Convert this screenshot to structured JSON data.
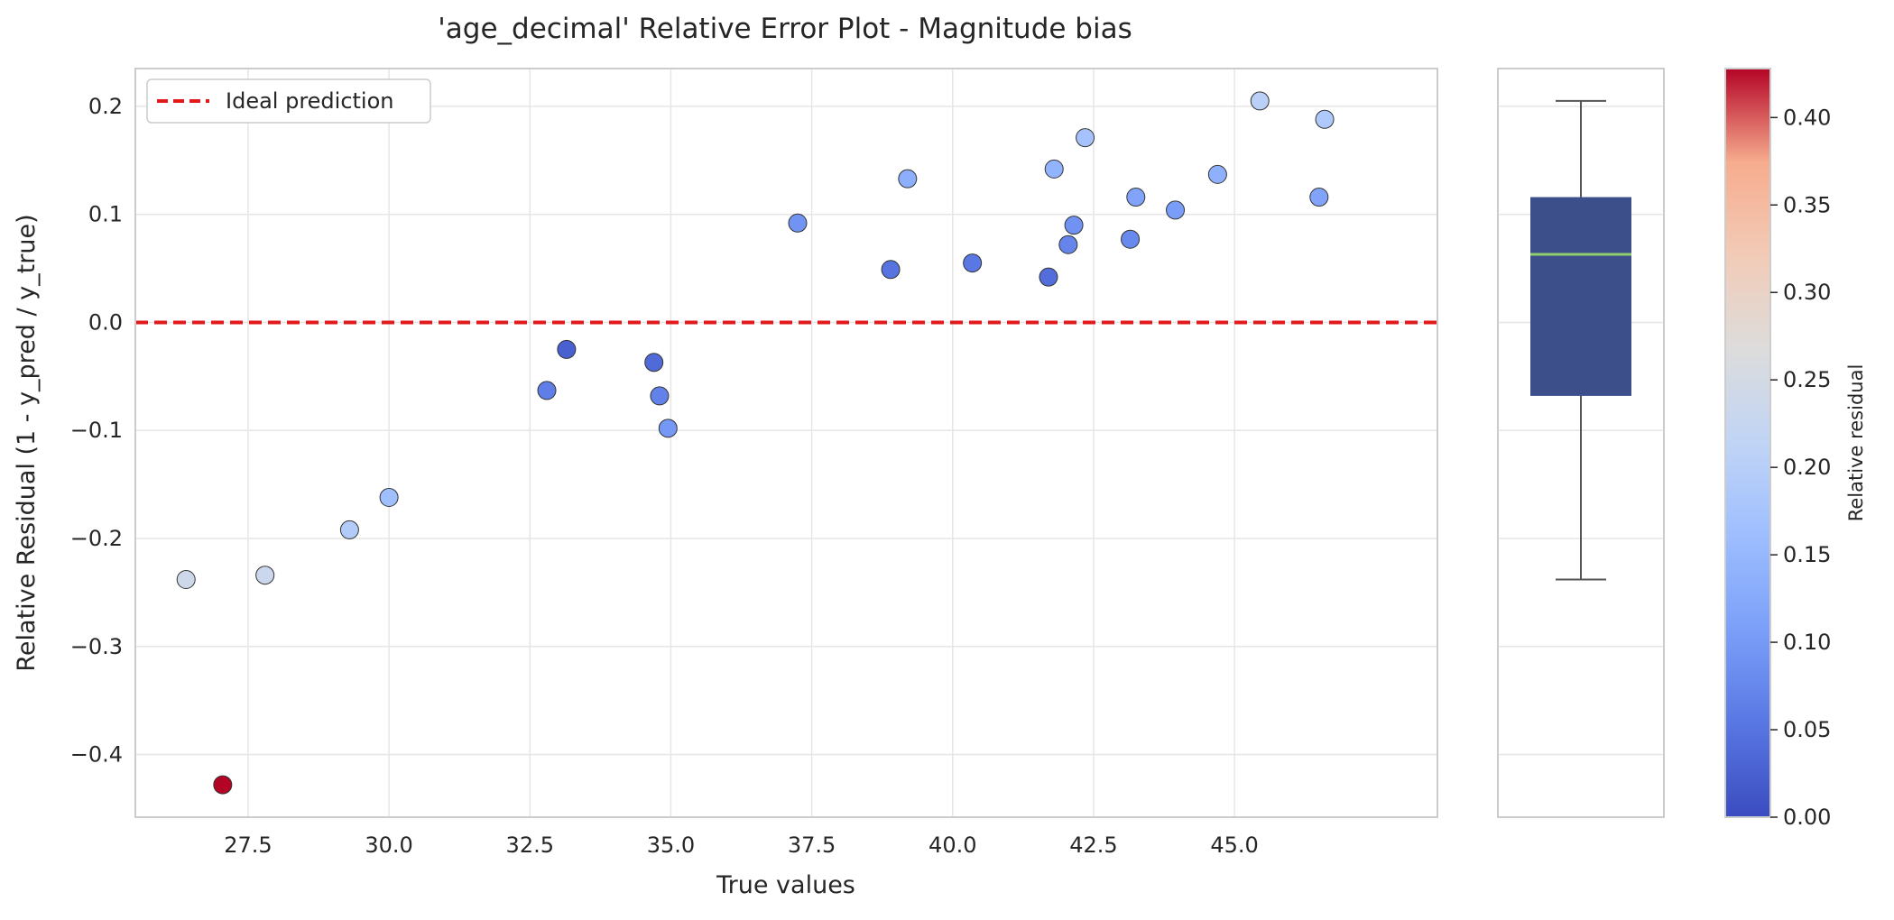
{
  "chart_data": {
    "type": "scatter",
    "title": "'age_decimal' Relative Error Plot - Magnitude bias",
    "xlabel": "True values",
    "ylabel": "Relative Residual (1 - y_pred / y_true)",
    "xlim": [
      25.5,
      48.6
    ],
    "ylim": [
      -0.458,
      0.235
    ],
    "x_ticks": [
      "27.5",
      "30.0",
      "32.5",
      "35.0",
      "37.5",
      "40.0",
      "42.5",
      "45.0"
    ],
    "x_tick_values": [
      27.5,
      30.0,
      32.5,
      35.0,
      37.5,
      40.0,
      42.5,
      45.0
    ],
    "y_ticks": [
      "−0.4",
      "−0.3",
      "−0.2",
      "−0.1",
      "0.0",
      "0.1",
      "0.2"
    ],
    "y_tick_values": [
      -0.4,
      -0.3,
      -0.2,
      -0.1,
      0.0,
      0.1,
      0.2
    ],
    "grid": true,
    "legend": {
      "position": "top-left",
      "entries": [
        "Ideal prediction"
      ]
    },
    "reference_line": {
      "y": 0.0,
      "style": "dashed",
      "color": "#e31a1c"
    },
    "points": [
      {
        "x": 26.4,
        "y": -0.238
      },
      {
        "x": 27.05,
        "y": -0.428
      },
      {
        "x": 27.8,
        "y": -0.234
      },
      {
        "x": 29.3,
        "y": -0.192
      },
      {
        "x": 30.0,
        "y": -0.162
      },
      {
        "x": 32.8,
        "y": -0.063
      },
      {
        "x": 33.15,
        "y": -0.025
      },
      {
        "x": 34.7,
        "y": -0.037
      },
      {
        "x": 34.8,
        "y": -0.068
      },
      {
        "x": 34.95,
        "y": -0.098
      },
      {
        "x": 37.25,
        "y": 0.092
      },
      {
        "x": 38.9,
        "y": 0.049
      },
      {
        "x": 39.2,
        "y": 0.133
      },
      {
        "x": 40.35,
        "y": 0.055
      },
      {
        "x": 41.7,
        "y": 0.042
      },
      {
        "x": 41.8,
        "y": 0.142
      },
      {
        "x": 42.05,
        "y": 0.072
      },
      {
        "x": 42.15,
        "y": 0.09
      },
      {
        "x": 42.35,
        "y": 0.171
      },
      {
        "x": 43.15,
        "y": 0.077
      },
      {
        "x": 43.25,
        "y": 0.116
      },
      {
        "x": 43.95,
        "y": 0.104
      },
      {
        "x": 44.7,
        "y": 0.137
      },
      {
        "x": 45.45,
        "y": 0.205
      },
      {
        "x": 46.5,
        "y": 0.116
      },
      {
        "x": 46.6,
        "y": 0.188
      }
    ],
    "color_by": "abs_residual",
    "colormap": "coolwarm",
    "boxplot": {
      "min": -0.238,
      "q1": -0.068,
      "median": 0.063,
      "q3": 0.116,
      "max": 0.205,
      "box_color": "#3c4f8a",
      "median_color": "#8fce6a"
    },
    "colorbar": {
      "label": "Relative residual",
      "range": [
        0.0,
        0.428
      ],
      "ticks": [
        "0.00",
        "0.05",
        "0.10",
        "0.15",
        "0.20",
        "0.25",
        "0.30",
        "0.35",
        "0.40"
      ],
      "tick_values": [
        0.0,
        0.05,
        0.1,
        0.15,
        0.2,
        0.25,
        0.3,
        0.35,
        0.4
      ]
    }
  }
}
